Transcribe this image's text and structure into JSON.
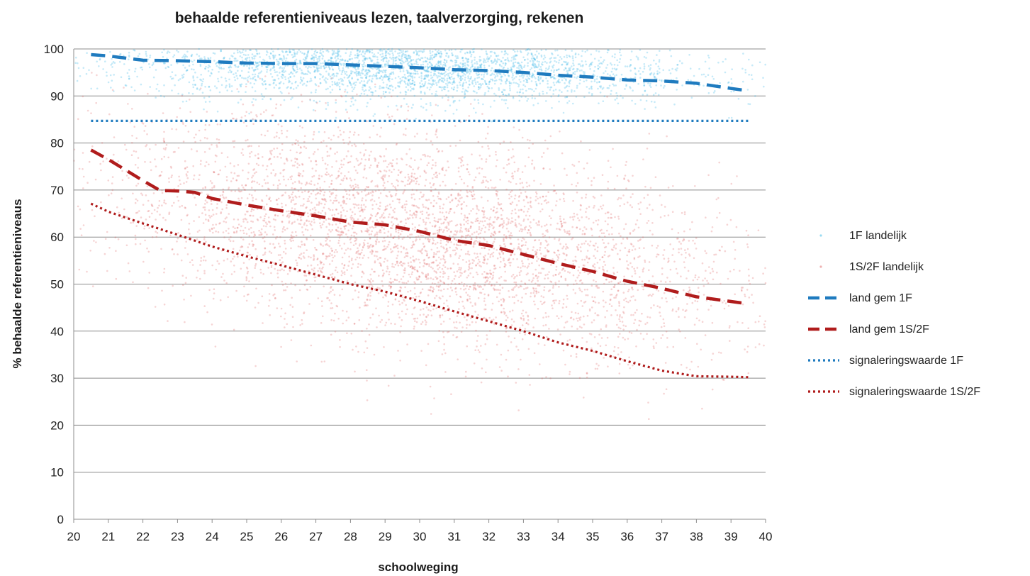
{
  "chart_data": {
    "type": "scatter",
    "title": "behaalde referentieniveaus  lezen, taalverzorging, rekenen",
    "xlabel": "schoolweging",
    "ylabel": "% behaalde referentieniveaus",
    "xlim": [
      20,
      40
    ],
    "ylim": [
      0,
      100
    ],
    "x_ticks": [
      20,
      21,
      22,
      23,
      24,
      25,
      26,
      27,
      28,
      29,
      30,
      31,
      32,
      33,
      34,
      35,
      36,
      37,
      38,
      39,
      40
    ],
    "y_ticks": [
      0,
      10,
      20,
      30,
      40,
      50,
      60,
      70,
      80,
      90,
      100
    ],
    "grid": true,
    "legend_position": "right",
    "series": [
      {
        "name": "1F landelijk",
        "kind": "scatter",
        "color": "#33b5e5",
        "description_distribution": {
          "x_center": 29.5,
          "x_spread": 4.2,
          "y_center": 96,
          "y_spread": 3.5,
          "y_clip": [
            80,
            100
          ],
          "n_points": 3200
        }
      },
      {
        "name": "1S/2F landelijk",
        "kind": "scatter",
        "color": "#e06666",
        "description_distribution": {
          "x_center": 30,
          "x_spread": 4.5,
          "y_center": 60,
          "y_spread": 11,
          "y_clip": [
            0,
            95
          ],
          "n_points": 4600
        }
      },
      {
        "name": "land gem 1F",
        "kind": "line",
        "style": "dashed",
        "color": "#1f7bbf",
        "x": [
          20.5,
          21,
          22,
          23,
          24,
          25,
          26,
          27,
          28,
          29,
          30,
          31,
          32,
          33,
          34,
          35,
          36,
          37,
          38,
          39,
          39.5
        ],
        "y": [
          98.8,
          98.5,
          97.6,
          97.5,
          97.3,
          97.0,
          96.9,
          96.9,
          96.6,
          96.3,
          96.0,
          95.6,
          95.4,
          95.0,
          94.4,
          94.0,
          93.4,
          93.2,
          92.7,
          91.6,
          91.1
        ]
      },
      {
        "name": "land gem 1S/2F",
        "kind": "line",
        "style": "dashed",
        "color": "#b01c1c",
        "x": [
          20.5,
          21,
          22,
          22.5,
          23,
          23.5,
          24,
          25,
          26,
          27,
          28,
          29,
          30,
          31,
          32,
          33,
          34,
          35,
          36,
          37,
          38,
          39,
          39.5
        ],
        "y": [
          78.5,
          76.5,
          72.0,
          69.9,
          69.8,
          69.5,
          68.2,
          66.8,
          65.6,
          64.5,
          63.2,
          62.6,
          61.2,
          59.3,
          58.2,
          56.3,
          54.4,
          52.7,
          50.6,
          49.1,
          47.3,
          46.3,
          45.8
        ]
      },
      {
        "name": "signaleringswaarde 1F",
        "kind": "line",
        "style": "dotted",
        "color": "#1f7bbf",
        "x": [
          20.5,
          39.5
        ],
        "y": [
          84.7,
          84.7
        ]
      },
      {
        "name": "signaleringswaarde 1S/2F",
        "kind": "line",
        "style": "dotted",
        "color": "#b01c1c",
        "x": [
          20.5,
          21,
          22,
          23,
          24,
          25,
          26,
          27,
          28,
          29,
          30,
          31,
          32,
          33,
          34,
          35,
          36,
          37,
          38,
          39,
          39.5
        ],
        "y": [
          67.1,
          65.4,
          62.9,
          60.5,
          58.0,
          55.9,
          54.0,
          52.0,
          50.0,
          48.4,
          46.4,
          44.2,
          42.1,
          40.0,
          37.6,
          35.8,
          33.6,
          31.6,
          30.4,
          30.3,
          30.2
        ]
      }
    ]
  }
}
